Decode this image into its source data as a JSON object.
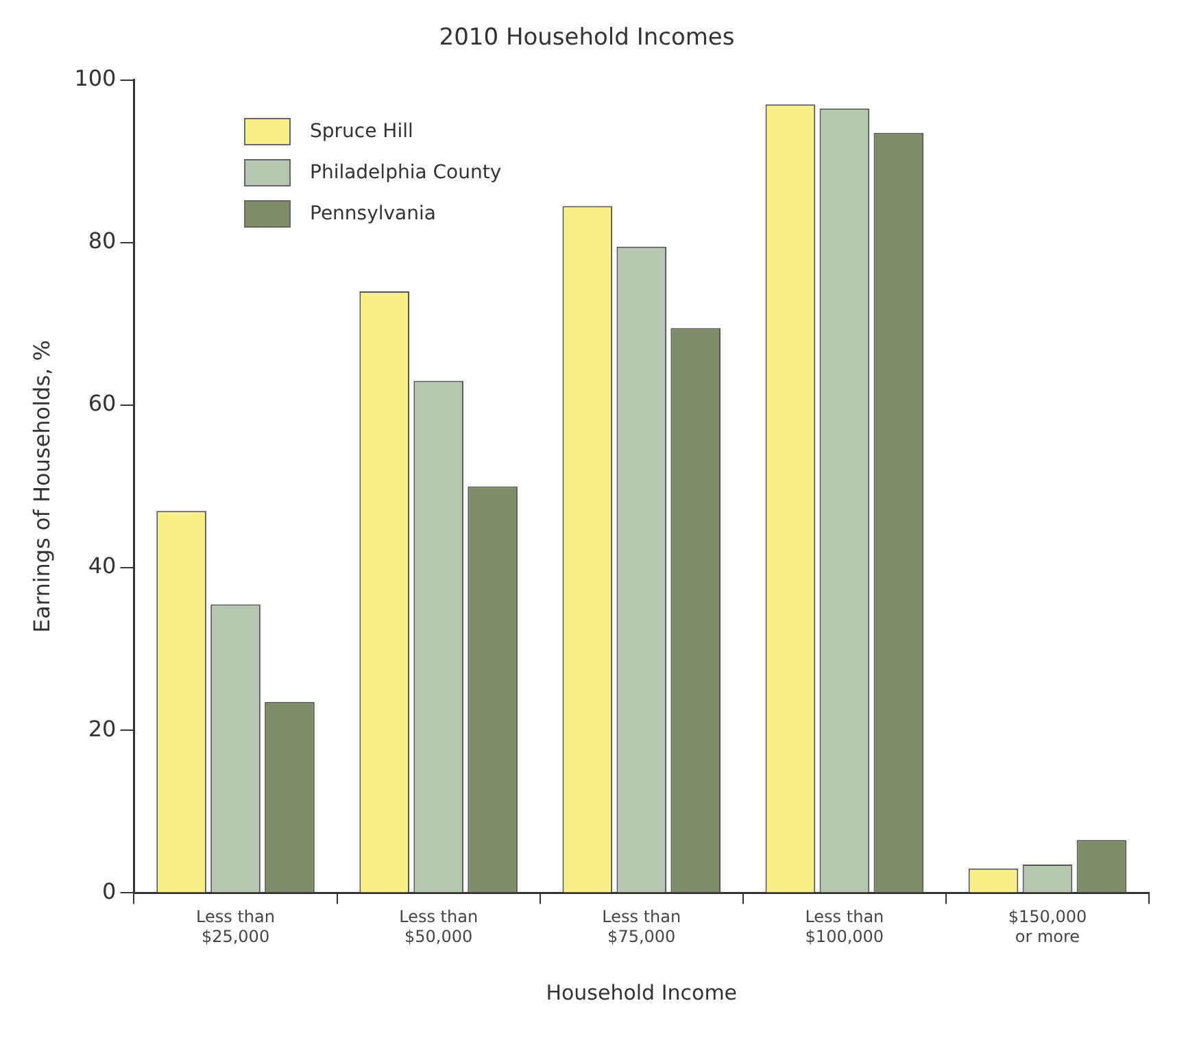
{
  "chart_data": {
    "type": "bar",
    "title": "2010 Household Incomes",
    "xlabel": "Household Income",
    "ylabel": "Earnings of Households, %",
    "categories": [
      "Less than\n$25,000",
      "Less than\n$50,000",
      "Less than\n$75,000",
      "Less than\n$100,000",
      "$150,000\nor more"
    ],
    "series": [
      {
        "name": "Spruce Hill",
        "color": "#f9f08a",
        "values": [
          47,
          74,
          84.5,
          97,
          3
        ]
      },
      {
        "name": "Philadelphia County",
        "color": "#b7c6b0",
        "values": [
          35.5,
          63,
          79.5,
          96.5,
          3.5
        ]
      },
      {
        "name": "Pennsylvania",
        "color": "#7f8c69",
        "values": [
          23.5,
          50,
          69.5,
          93.5,
          6.5
        ]
      }
    ],
    "ylim": [
      0,
      100
    ],
    "yticks": [
      0,
      20,
      40,
      60,
      80,
      100
    ],
    "grid": false,
    "legend": "top left"
  }
}
